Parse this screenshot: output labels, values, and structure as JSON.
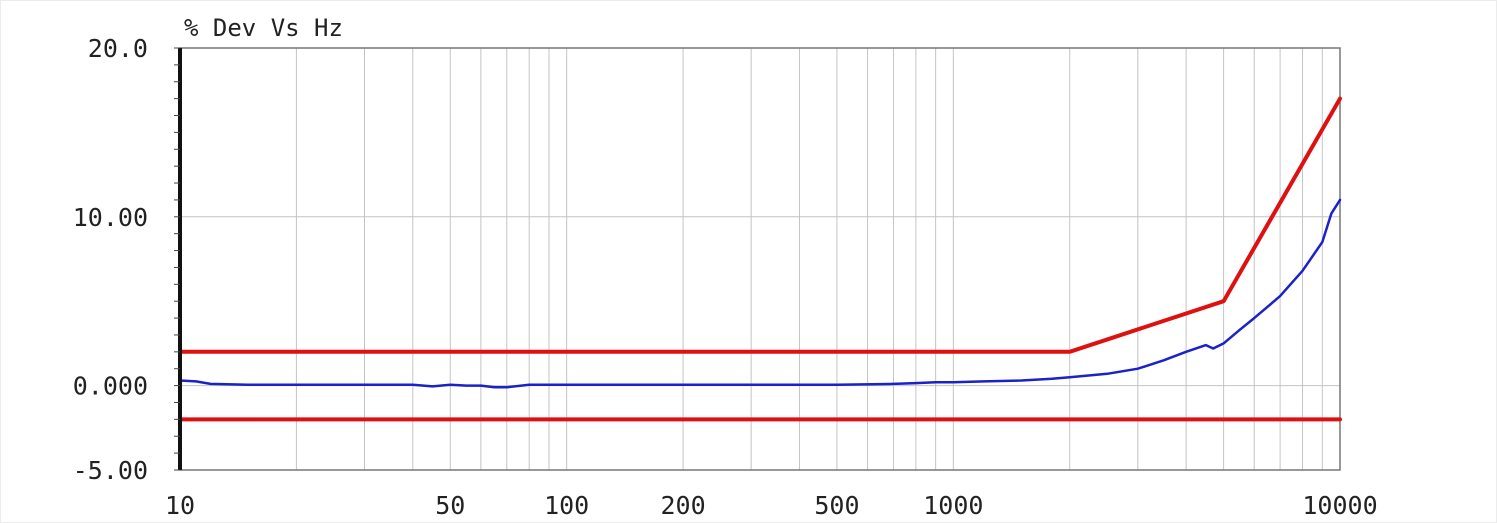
{
  "chart_data": {
    "type": "line",
    "title": "% Dev Vs Hz",
    "xlabel": "",
    "ylabel": "",
    "x_scale": "log",
    "xlim": [
      10,
      10000
    ],
    "ylim": [
      -5,
      20
    ],
    "grid": true,
    "x_ticks": [
      10,
      20,
      30,
      40,
      50,
      60,
      70,
      80,
      90,
      100,
      200,
      300,
      400,
      500,
      600,
      700,
      800,
      900,
      1000,
      2000,
      3000,
      4000,
      5000,
      6000,
      7000,
      8000,
      9000,
      10000
    ],
    "x_tick_labels": [
      {
        "value": 10,
        "label": "10"
      },
      {
        "value": 50,
        "label": "50"
      },
      {
        "value": 100,
        "label": "100"
      },
      {
        "value": 200,
        "label": "200"
      },
      {
        "value": 500,
        "label": "500"
      },
      {
        "value": 1000,
        "label": "1000"
      },
      {
        "value": 10000,
        "label": "10000"
      }
    ],
    "y_tick_labels": [
      {
        "value": 20,
        "label": "20.0"
      },
      {
        "value": 10,
        "label": "10.00"
      },
      {
        "value": 0,
        "label": "0.000"
      },
      {
        "value": -5,
        "label": "-5.00"
      }
    ],
    "y_gridlines": [
      10,
      0
    ],
    "series": [
      {
        "color": "#dd1111",
        "role": "upper-limit",
        "x": [
          10,
          2000,
          5000,
          10000
        ],
        "y": [
          2.0,
          2.0,
          5.0,
          17.0
        ]
      },
      {
        "color": "#dd1111",
        "role": "lower-limit",
        "x": [
          10,
          10000
        ],
        "y": [
          -2.0,
          -2.0
        ]
      },
      {
        "color": "#1a22c8",
        "role": "measured",
        "x": [
          10,
          11,
          12,
          15,
          20,
          30,
          40,
          45,
          50,
          55,
          60,
          65,
          70,
          80,
          100,
          150,
          200,
          300,
          500,
          700,
          800,
          900,
          1000,
          1200,
          1500,
          1800,
          2000,
          2500,
          3000,
          3500,
          4000,
          4500,
          4700,
          5000,
          5500,
          6000,
          7000,
          8000,
          9000,
          9500,
          10000
        ],
        "y": [
          0.3,
          0.25,
          0.1,
          0.05,
          0.05,
          0.05,
          0.05,
          -0.05,
          0.05,
          0.0,
          0.0,
          -0.1,
          -0.1,
          0.05,
          0.05,
          0.05,
          0.05,
          0.05,
          0.05,
          0.1,
          0.15,
          0.2,
          0.2,
          0.25,
          0.3,
          0.4,
          0.5,
          0.7,
          1.0,
          1.5,
          2.0,
          2.4,
          2.2,
          2.5,
          3.3,
          4.0,
          5.3,
          6.8,
          8.5,
          10.2,
          11.0
        ]
      }
    ]
  }
}
